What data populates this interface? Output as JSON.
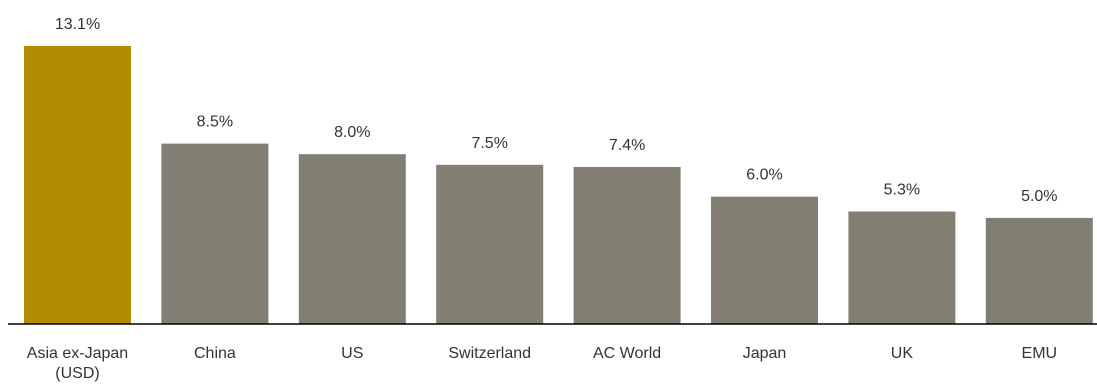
{
  "chart_data": {
    "type": "bar",
    "title": "",
    "xlabel": "",
    "ylabel": "",
    "ylim": [
      0,
      13.1
    ],
    "grid": false,
    "legend": "none",
    "categories": [
      [
        "Asia ex-Japan",
        "(USD)"
      ],
      [
        "China"
      ],
      [
        "US"
      ],
      [
        "Switzerland"
      ],
      [
        "AC World"
      ],
      [
        "Japan"
      ],
      [
        "UK"
      ],
      [
        "EMU"
      ]
    ],
    "values": [
      13.1,
      8.5,
      8.0,
      7.5,
      7.4,
      6.0,
      5.3,
      5.0
    ],
    "value_labels": [
      "13.1%",
      "8.5%",
      "8.0%",
      "7.5%",
      "7.4%",
      "6.0%",
      "5.3%",
      "5.0%"
    ],
    "colors": {
      "highlight": "#b28c00",
      "default": "#827f72",
      "axis": "#000000",
      "text": "#333333"
    },
    "highlight_index": 0
  }
}
